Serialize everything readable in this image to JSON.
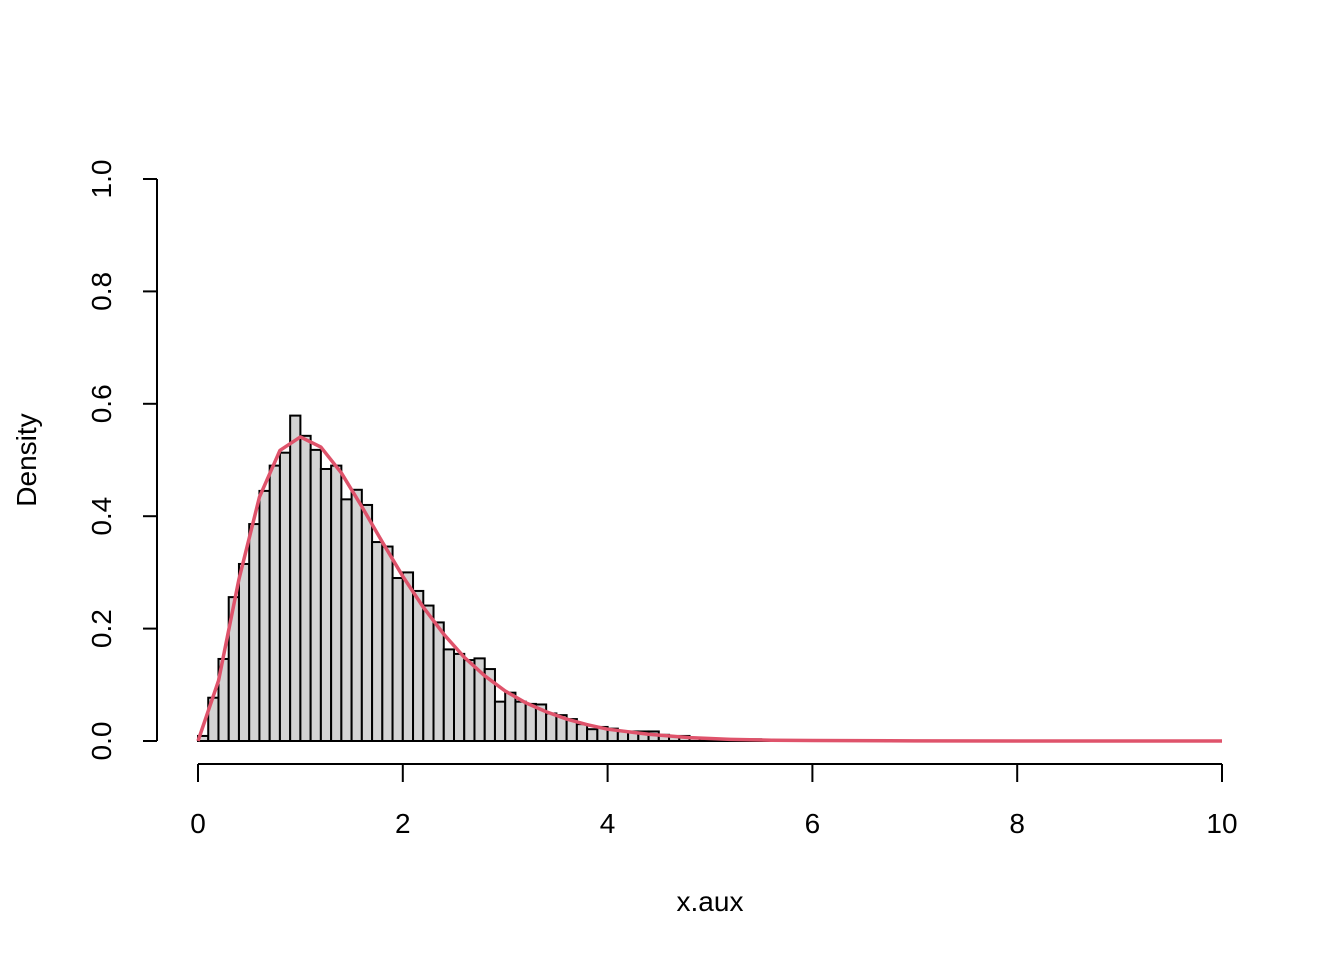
{
  "chart_data": {
    "type": "bar",
    "title": "",
    "xlabel": "x.aux",
    "ylabel": "Density",
    "xlim": [
      0,
      10
    ],
    "ylim": [
      0,
      1
    ],
    "xticks": [
      "0",
      "2",
      "4",
      "6",
      "8",
      "10"
    ],
    "yticks": [
      "0.0",
      "0.2",
      "0.4",
      "0.6",
      "0.8",
      "1.0"
    ],
    "bin_width": 0.1,
    "bin_start": 0,
    "values": [
      0.009,
      0.077,
      0.146,
      0.256,
      0.315,
      0.386,
      0.445,
      0.49,
      0.513,
      0.579,
      0.543,
      0.518,
      0.484,
      0.49,
      0.43,
      0.447,
      0.42,
      0.354,
      0.346,
      0.29,
      0.3,
      0.267,
      0.241,
      0.211,
      0.163,
      0.155,
      0.144,
      0.147,
      0.128,
      0.07,
      0.086,
      0.07,
      0.066,
      0.065,
      0.049,
      0.046,
      0.039,
      0.03,
      0.021,
      0.025,
      0.022,
      0.017,
      0.017,
      0.017,
      0.017,
      0.011,
      0.008,
      0.009,
      0.005,
      0.004,
      0.004,
      0.003,
      0.002,
      0.002,
      0.003,
      0.001,
      0.001,
      0.001,
      0.001
    ],
    "bar_color": "#d3d3d3",
    "curve": {
      "color": "#df536b",
      "x": [
        0,
        0.2,
        0.4,
        0.6,
        0.8,
        1.0,
        1.2,
        1.4,
        1.6,
        1.8,
        2.0,
        2.2,
        2.4,
        2.6,
        2.8,
        3.0,
        3.2,
        3.4,
        3.6,
        3.8,
        4.0,
        4.4,
        4.8,
        5.2,
        5.6,
        6.0,
        7.0,
        8.0,
        10.0
      ],
      "y": [
        0,
        0.107,
        0.288,
        0.434,
        0.517,
        0.541,
        0.523,
        0.477,
        0.417,
        0.354,
        0.293,
        0.238,
        0.19,
        0.149,
        0.116,
        0.089,
        0.068,
        0.052,
        0.039,
        0.029,
        0.021,
        0.012,
        0.006,
        0.003,
        0.0014,
        0.0009,
        0.0002,
        0,
        0
      ]
    }
  }
}
